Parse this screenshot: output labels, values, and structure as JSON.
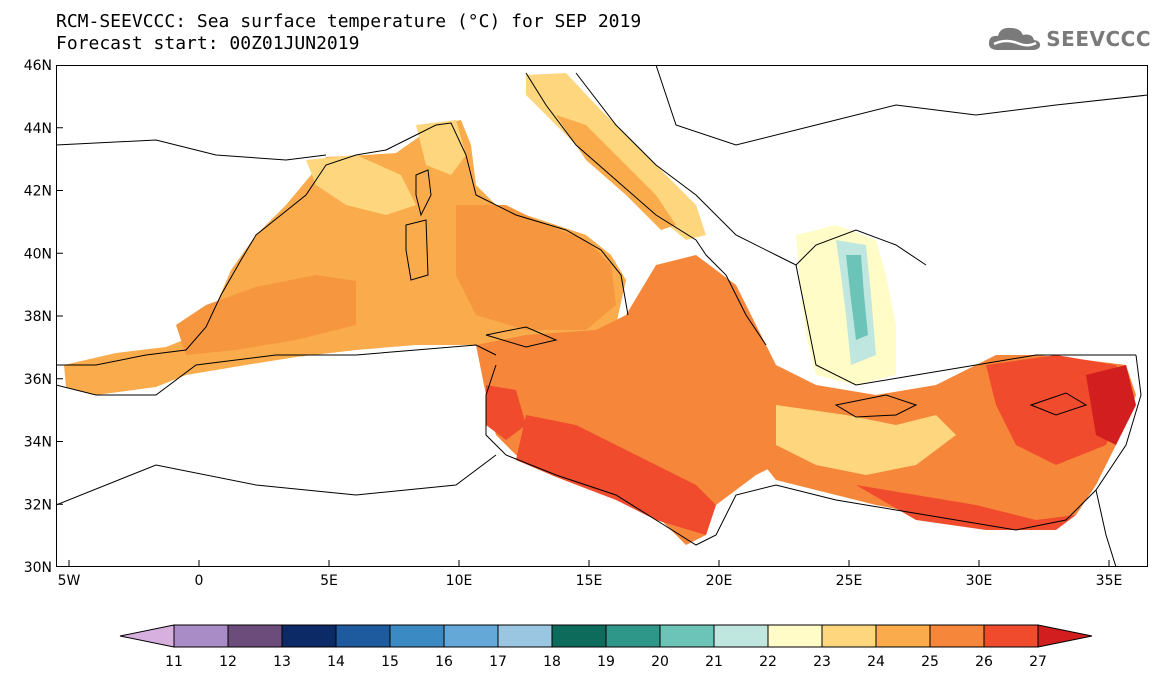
{
  "title": {
    "line1": "RCM-SEEVCCC: Sea surface temperature (°C) for SEP 2019",
    "line2": "Forecast start: 00Z01JUN2019"
  },
  "logo": {
    "text": "SEEVCCC",
    "icon": "cloud-icon",
    "color": "#7a7a7a"
  },
  "map": {
    "lon_range": [
      -5.5,
      36.5
    ],
    "lat_range": [
      30,
      46
    ],
    "lon_ticks": [
      {
        "value": -5,
        "label": "5W"
      },
      {
        "value": 0,
        "label": "0"
      },
      {
        "value": 5,
        "label": "5E"
      },
      {
        "value": 10,
        "label": "10E"
      },
      {
        "value": 15,
        "label": "15E"
      },
      {
        "value": 20,
        "label": "20E"
      },
      {
        "value": 25,
        "label": "25E"
      },
      {
        "value": 30,
        "label": "30E"
      },
      {
        "value": 35,
        "label": "35E"
      }
    ],
    "lat_ticks": [
      {
        "value": 30,
        "label": "30N"
      },
      {
        "value": 32,
        "label": "32N"
      },
      {
        "value": 34,
        "label": "34N"
      },
      {
        "value": 36,
        "label": "36N"
      },
      {
        "value": 38,
        "label": "38N"
      },
      {
        "value": 40,
        "label": "40N"
      },
      {
        "value": 42,
        "label": "42N"
      },
      {
        "value": 44,
        "label": "44N"
      },
      {
        "value": 46,
        "label": "46N"
      }
    ]
  },
  "colorbar": {
    "labels": [
      "11",
      "12",
      "13",
      "14",
      "15",
      "16",
      "17",
      "18",
      "19",
      "20",
      "21",
      "22",
      "23",
      "24",
      "25",
      "26",
      "27"
    ],
    "under_color": "#d8b0e0",
    "over_color": "#d21e1e",
    "colors": [
      "#a98bc5",
      "#6b4c7a",
      "#0c2a66",
      "#1d5a9e",
      "#3b8ac4",
      "#64a8d8",
      "#9ac6e2",
      "#0d6b5c",
      "#2f968a",
      "#6cc4b8",
      "#bfe6df",
      "#fffcc8",
      "#fdd67d",
      "#faab4c",
      "#f6863a",
      "#ef4b2c"
    ]
  }
}
